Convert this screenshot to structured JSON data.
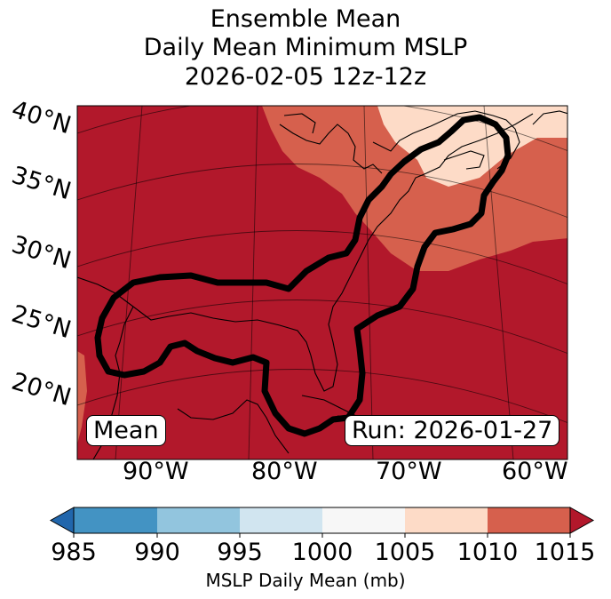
{
  "title": {
    "line1": "Ensemble Mean",
    "line2": "Daily Mean Minimum MSLP",
    "line3": "2026-02-05 12z-12z"
  },
  "map": {
    "lat_labels": [
      "40°N",
      "35°N",
      "30°N",
      "25°N",
      "20°N"
    ],
    "lon_labels": [
      "90°W",
      "80°W",
      "70°W",
      "60°W"
    ],
    "mean_label": "Mean",
    "run_label": "Run: 2026-01-27",
    "colors": {
      "1005-1010": "#fddbc7",
      "1010-1015": "#d6604d",
      "above-1015": "#b2182b",
      "contour": "#000000"
    }
  },
  "colorbar": {
    "ticks": [
      "985",
      "990",
      "995",
      "1000",
      "1005",
      "1010",
      "1015"
    ],
    "label": "MSLP Daily Mean (mb)",
    "colors": {
      "below": "#2166ac",
      "985-990": "#4393c3",
      "990-995": "#92c5de",
      "995-1000": "#d1e5f0",
      "1000-1005": "#f7f7f7",
      "1005-1010": "#fddbc7",
      "1010-1015": "#d6604d",
      "above": "#b2182b"
    }
  }
}
